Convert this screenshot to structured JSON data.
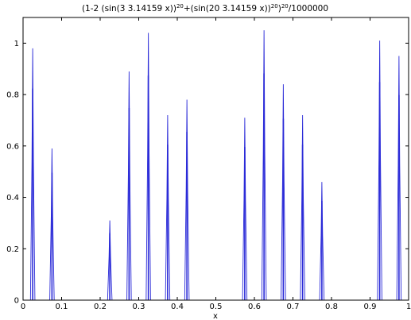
{
  "chart_data": {
    "type": "line",
    "title": {
      "base": "(1-2 (sin(3 3.14159 x))",
      "exp1": "20",
      "mid": "+(sin(20 3.14159 x))",
      "exp2": "20",
      "close": ")",
      "exp3": "20",
      "tail": "/1000000"
    },
    "xlabel": "x",
    "ylabel": "",
    "xlim": [
      0,
      1
    ],
    "ylim": [
      0,
      1.1
    ],
    "x_ticks": [
      0,
      0.1,
      0.2,
      0.3,
      0.4,
      0.5,
      0.6,
      0.7,
      0.8,
      0.9,
      1
    ],
    "x_tick_labels": [
      "0",
      "0.1",
      "0.2",
      "0.3",
      "0.4",
      "0.5",
      "0.6",
      "0.7",
      "0.8",
      "0.9",
      "1"
    ],
    "y_ticks": [
      0,
      0.2,
      0.4,
      0.6,
      0.8,
      1
    ],
    "y_tick_labels": [
      "0",
      "0.2",
      "0.4",
      "0.6",
      "0.8",
      "1"
    ],
    "grid": false,
    "series": [
      {
        "color": "#2b2bd8",
        "peaks": [
          {
            "x": 0.025,
            "y": 0.98
          },
          {
            "x": 0.075,
            "y": 0.59
          },
          {
            "x": 0.225,
            "y": 0.31
          },
          {
            "x": 0.275,
            "y": 0.89
          },
          {
            "x": 0.325,
            "y": 1.04
          },
          {
            "x": 0.375,
            "y": 0.72
          },
          {
            "x": 0.425,
            "y": 0.78
          },
          {
            "x": 0.575,
            "y": 0.71
          },
          {
            "x": 0.625,
            "y": 1.05
          },
          {
            "x": 0.675,
            "y": 0.84
          },
          {
            "x": 0.725,
            "y": 0.72
          },
          {
            "x": 0.775,
            "y": 0.46
          },
          {
            "x": 0.925,
            "y": 1.01
          },
          {
            "x": 0.975,
            "y": 0.95
          }
        ]
      }
    ]
  }
}
